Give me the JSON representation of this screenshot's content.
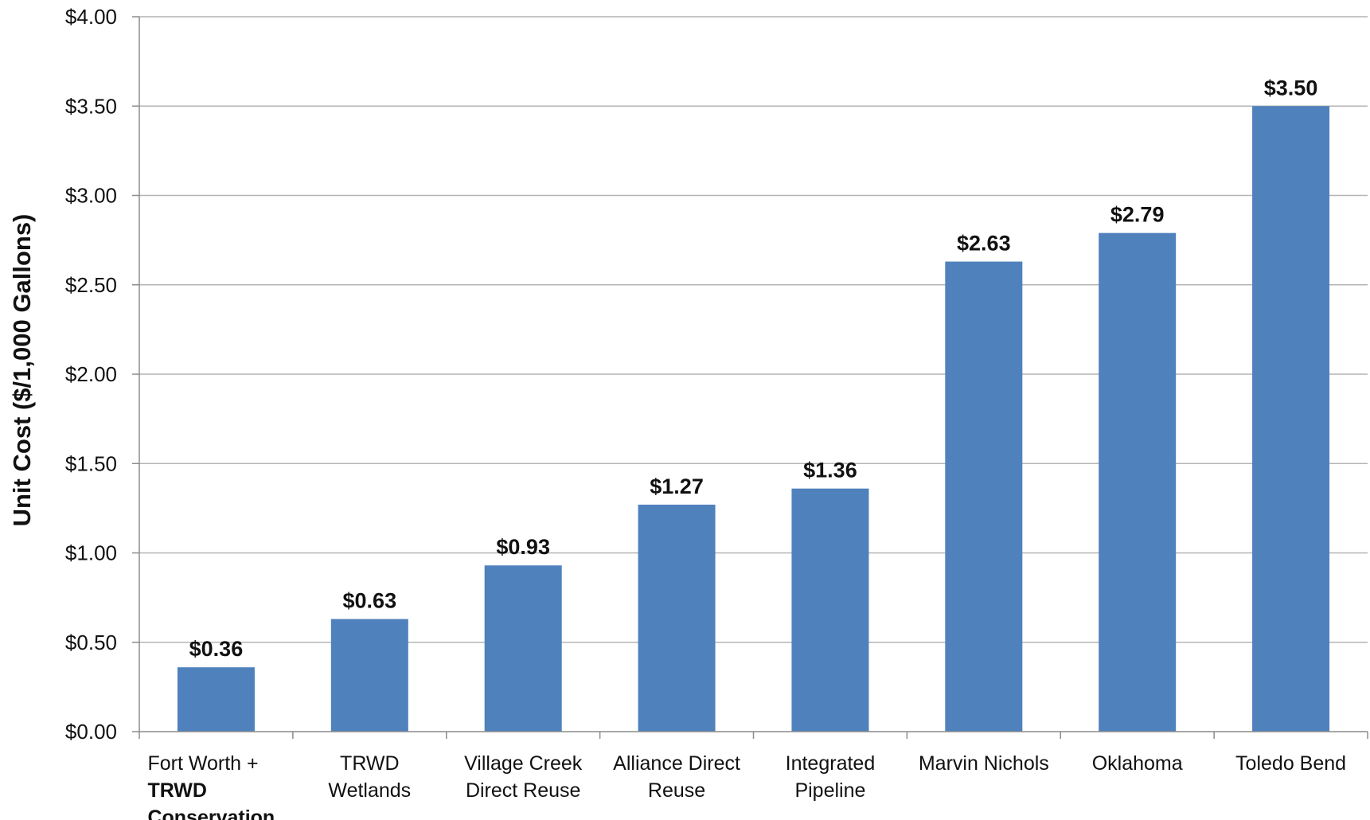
{
  "chart_data": {
    "type": "bar",
    "title": "",
    "xlabel": "",
    "ylabel": "Unit Cost ($/1,000 Gallons)",
    "ylim": [
      0,
      4
    ],
    "y_ticks": [
      "$0.00",
      "$0.50",
      "$1.00",
      "$1.50",
      "$2.00",
      "$2.50",
      "$3.00",
      "$3.50",
      "$4.00"
    ],
    "y_tick_values": [
      0,
      0.5,
      1,
      1.5,
      2,
      2.5,
      3,
      3.5,
      4
    ],
    "grid": true,
    "legend": "none",
    "bar_color": "#4f81bd",
    "categories": [
      "Fort Worth + TRWD Conservation",
      "TRWD Wetlands",
      "Village Creek Direct Reuse",
      "Alliance Direct Reuse",
      "Integrated Pipeline",
      "Marvin Nichols",
      "Oklahoma",
      "Toledo Bend"
    ],
    "category_lines": [
      [
        "Fort Worth +",
        "TRWD",
        "Conservation"
      ],
      [
        "TRWD",
        "Wetlands"
      ],
      [
        "Village Creek",
        "Direct Reuse"
      ],
      [
        "Alliance Direct",
        "Reuse"
      ],
      [
        "Integrated",
        "Pipeline"
      ],
      [
        "Marvin Nichols"
      ],
      [
        "Oklahoma"
      ],
      [
        "Toledo Bend"
      ]
    ],
    "values": [
      0.36,
      0.63,
      0.93,
      1.27,
      1.36,
      2.63,
      2.79,
      3.5
    ],
    "data_labels": [
      "$0.36",
      "$0.63",
      "$0.93",
      "$1.27",
      "$1.36",
      "$2.63",
      "$2.79",
      "$3.50"
    ]
  }
}
